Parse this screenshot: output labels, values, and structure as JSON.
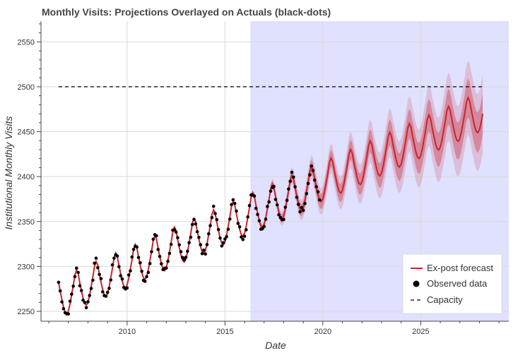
{
  "chart_data": {
    "type": "line",
    "title": "Monthly Visits: Projections Overlayed on Actuals (black-dots)",
    "xlabel": "Date",
    "ylabel": "Institutional Monthly Visits",
    "xlim": [
      2005.6,
      2029.5
    ],
    "ylim": [
      2239,
      2573
    ],
    "x_ticks": [
      2010,
      2015,
      2020,
      2025
    ],
    "y_ticks": [
      2250,
      2300,
      2350,
      2400,
      2450,
      2500,
      2550
    ],
    "grid": true,
    "legend_position": "bottom-right",
    "shaded_region": {
      "x_start": 2016.3,
      "x_end": 2029.5,
      "color": "#e0e0ff"
    },
    "series": [
      {
        "name": "Ex-post forecast",
        "kind": "line",
        "color": "#c9252e",
        "x_start": 2006.5,
        "x_end": 2028.2,
        "step_months": 1,
        "trend_start": 2262,
        "trend_slope_per_year": 9.6,
        "seasonal_amplitude": 25,
        "peak_month": 6,
        "uncertainty_from": 2016.3,
        "uncertainty_growth_per_year": 1.1
      },
      {
        "name": "Observed data",
        "kind": "scatter",
        "color": "#000000",
        "x_start": 2006.5,
        "x_end": 2019.9,
        "step_months": 1,
        "based_on": "Ex-post forecast",
        "noise": 4
      },
      {
        "name": "Capacity",
        "kind": "dashed-line",
        "color": "#000000",
        "x": [
          2006.5,
          2028.2
        ],
        "values": [
          2500,
          2500
        ]
      }
    ],
    "legend": [
      "Ex-post forecast",
      "Observed data",
      "Capacity"
    ]
  }
}
